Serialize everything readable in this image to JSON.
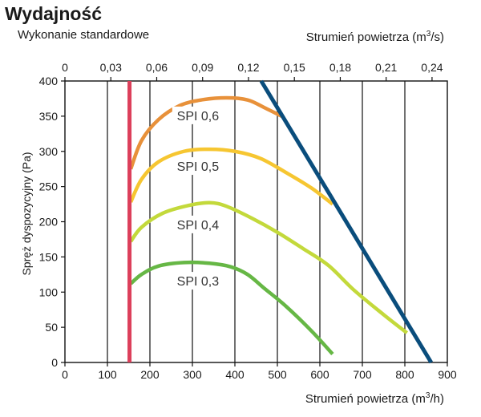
{
  "title": "Wydajność",
  "subtitle": "Wykonanie standardowe",
  "chart_data": {
    "type": "line",
    "title": "Wydajność",
    "subtitle": "Wykonanie standardowe",
    "xlabel": "Strumień powietrza (m3/h)",
    "xlabel_parts": {
      "base": "Strumień powietrza (m",
      "sup": "3",
      "end": "/h)"
    },
    "x2label": "Strumień powietrza (m3/s)",
    "x2label_parts": {
      "base": "Strumień powietrza (m",
      "sup": "3",
      "end": "/s)"
    },
    "ylabel": "Spręż dyspozycyjny (Pa)",
    "xlim": [
      0,
      900
    ],
    "ylim": [
      0,
      400
    ],
    "x2lim": [
      0,
      0.25
    ],
    "xticks": [
      0,
      100,
      200,
      300,
      400,
      500,
      600,
      700,
      800,
      900
    ],
    "yticks": [
      0,
      50,
      100,
      150,
      200,
      250,
      300,
      350,
      400
    ],
    "x2ticks": [
      {
        "value": 0,
        "label": "0"
      },
      {
        "value": 0.03,
        "label": "0,03"
      },
      {
        "value": 0.06,
        "label": "0,06"
      },
      {
        "value": 0.09,
        "label": "0,09"
      },
      {
        "value": 0.12,
        "label": "0,12"
      },
      {
        "value": 0.15,
        "label": "0,15"
      },
      {
        "value": 0.18,
        "label": "0,18"
      },
      {
        "value": 0.21,
        "label": "0,21"
      },
      {
        "value": 0.24,
        "label": "0,24"
      }
    ],
    "grid": "vertical",
    "series": [
      {
        "name": "SPI 0,6",
        "label": "SPI 0,6",
        "label_at": [
          313,
          350
        ],
        "color": "#e8913a",
        "points": [
          [
            155,
            275
          ],
          [
            180,
            315
          ],
          [
            220,
            345
          ],
          [
            270,
            365
          ],
          [
            320,
            373
          ],
          [
            380,
            376
          ],
          [
            430,
            373
          ],
          [
            470,
            362
          ],
          [
            510,
            350
          ]
        ]
      },
      {
        "name": "SPI 0,5",
        "label": "SPI 0,5",
        "label_at": [
          313,
          278
        ],
        "color": "#f6c631",
        "points": [
          [
            155,
            228
          ],
          [
            180,
            260
          ],
          [
            220,
            285
          ],
          [
            280,
            300
          ],
          [
            340,
            303
          ],
          [
            400,
            300
          ],
          [
            460,
            290
          ],
          [
            520,
            270
          ],
          [
            580,
            248
          ],
          [
            630,
            225
          ]
        ]
      },
      {
        "name": "SPI 0,4",
        "label": "SPI 0,4",
        "label_at": [
          313,
          195
        ],
        "color": "#c3d93b",
        "points": [
          [
            155,
            172
          ],
          [
            180,
            192
          ],
          [
            230,
            212
          ],
          [
            290,
            223
          ],
          [
            340,
            227
          ],
          [
            380,
            222
          ],
          [
            440,
            205
          ],
          [
            500,
            185
          ],
          [
            560,
            162
          ],
          [
            620,
            138
          ],
          [
            680,
            103
          ],
          [
            750,
            68
          ],
          [
            805,
            42
          ]
        ]
      },
      {
        "name": "SPI 0,3",
        "label": "SPI 0,3",
        "label_at": [
          313,
          115
        ],
        "color": "#66b745",
        "points": [
          [
            155,
            112
          ],
          [
            180,
            125
          ],
          [
            220,
            137
          ],
          [
            280,
            142
          ],
          [
            340,
            141
          ],
          [
            390,
            136
          ],
          [
            430,
            125
          ],
          [
            470,
            105
          ],
          [
            520,
            80
          ],
          [
            580,
            45
          ],
          [
            630,
            12
          ]
        ]
      },
      {
        "name": "Maksymalny strumień",
        "label": "",
        "color": "#0a4d7c",
        "points": [
          [
            462,
            400
          ],
          [
            862,
            0
          ]
        ]
      },
      {
        "name": "Minimalny strumień",
        "label": "",
        "color": "#dc3f5a",
        "points": [
          [
            152,
            0
          ],
          [
            152,
            400
          ]
        ]
      }
    ]
  }
}
